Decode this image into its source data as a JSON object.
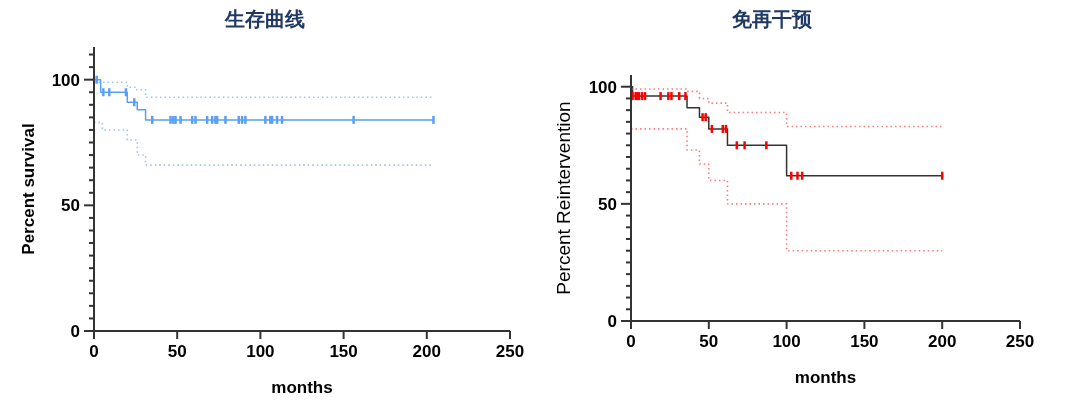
{
  "chart_data": [
    {
      "type": "step",
      "title": "生存曲线",
      "xlabel": "months",
      "ylabel": "Percent survival",
      "xlim": [
        0,
        250
      ],
      "ylim": [
        0,
        113
      ],
      "xticks": [
        0,
        50,
        100,
        150,
        200,
        250
      ],
      "yticks": [
        0,
        {
          "value": 5,
          "label": null
        },
        {
          "value": 10,
          "label": null
        },
        {
          "value": 15,
          "label": null
        },
        {
          "value": 20,
          "label": null
        },
        {
          "value": 25,
          "label": null
        },
        {
          "value": 30,
          "label": null
        },
        {
          "value": 35,
          "label": null
        },
        {
          "value": 40,
          "label": null
        },
        {
          "value": 45,
          "label": null
        },
        50,
        {
          "value": 55,
          "label": null
        },
        {
          "value": 60,
          "label": null
        },
        {
          "value": 65,
          "label": null
        },
        {
          "value": 70,
          "label": null
        },
        {
          "value": 75,
          "label": null
        },
        {
          "value": 80,
          "label": null
        },
        {
          "value": 85,
          "label": null
        },
        {
          "value": 90,
          "label": null
        },
        {
          "value": 95,
          "label": null
        },
        100,
        {
          "value": 105,
          "label": null
        },
        {
          "value": 110,
          "label": null
        }
      ],
      "grid": false,
      "series": [
        {
          "type": "step",
          "color": "#5aa0f5",
          "line_style": "solid",
          "x": [
            0,
            4,
            20,
            26,
            31,
            204
          ],
          "values": [
            100,
            95,
            91,
            88,
            84,
            84
          ]
        },
        {
          "type": "step",
          "color": "#9cc4f7",
          "line_style": "dotted",
          "x": [
            0,
            20,
            25,
            31,
            204
          ],
          "values": [
            99,
            97,
            96,
            93,
            93
          ]
        },
        {
          "type": "step",
          "color": "#9cc4f7",
          "line_style": "dotted",
          "x": [
            0,
            5,
            20,
            26,
            31,
            204
          ],
          "values": [
            83,
            80,
            76,
            70,
            66,
            66
          ]
        },
        {
          "type": "scatter",
          "color": "#5aa0f5",
          "x": [
            1.6,
            5.6,
            9.2,
            19.2,
            24.2,
            35,
            46,
            47.7,
            49,
            52,
            59,
            61,
            68,
            71,
            73,
            74,
            79,
            87,
            89,
            91,
            103,
            106,
            107,
            110,
            113,
            156,
            204
          ],
          "values": [
            100,
            95,
            95,
            95,
            91,
            84,
            84,
            84,
            84,
            84,
            84,
            84,
            84,
            84,
            84,
            84,
            84,
            84,
            84,
            84,
            84,
            84,
            84,
            84,
            84,
            84,
            84
          ]
        }
      ]
    },
    {
      "type": "step",
      "title": "免再干预",
      "xlabel": "months",
      "ylabel": "Percent Reintervention",
      "xlim": [
        0,
        250
      ],
      "ylim": [
        0,
        105
      ],
      "xticks": [
        0,
        50,
        100,
        150,
        200,
        250
      ],
      "yticks": [
        0,
        {
          "value": 5,
          "label": null
        },
        {
          "value": 10,
          "label": null
        },
        {
          "value": 15,
          "label": null
        },
        {
          "value": 20,
          "label": null
        },
        {
          "value": 25,
          "label": null
        },
        {
          "value": 30,
          "label": null
        },
        {
          "value": 35,
          "label": null
        },
        {
          "value": 40,
          "label": null
        },
        {
          "value": 45,
          "label": null
        },
        50,
        {
          "value": 55,
          "label": null
        },
        {
          "value": 60,
          "label": null
        },
        {
          "value": 65,
          "label": null
        },
        {
          "value": 70,
          "label": null
        },
        {
          "value": 75,
          "label": null
        },
        {
          "value": 80,
          "label": null
        },
        {
          "value": 85,
          "label": null
        },
        {
          "value": 90,
          "label": null
        },
        {
          "value": 95,
          "label": null
        },
        100
      ],
      "grid": false,
      "series": [
        {
          "type": "step",
          "color": "#333333",
          "line_style": "solid",
          "x": [
            0,
            1,
            36,
            44,
            50,
            62,
            100,
            200
          ],
          "values": [
            100,
            96,
            91,
            87,
            82,
            75,
            62,
            62
          ]
        },
        {
          "type": "step",
          "color": "#ff7b7b",
          "line_style": "dotted",
          "x": [
            0,
            36,
            44,
            50,
            62,
            100,
            200
          ],
          "values": [
            99,
            98,
            95,
            93,
            89,
            83,
            83
          ]
        },
        {
          "type": "step",
          "color": "#ff7b7b",
          "line_style": "dotted",
          "x": [
            0,
            36,
            44,
            50,
            62,
            100,
            200
          ],
          "values": [
            82,
            73,
            67,
            60,
            50,
            30,
            30
          ]
        },
        {
          "type": "scatter",
          "color": "#ff0000",
          "x": [
            1,
            3,
            4,
            5,
            7,
            9,
            19,
            24,
            26,
            31,
            35,
            46,
            48,
            52,
            59,
            61,
            68,
            73,
            87,
            103,
            107,
            110,
            200
          ],
          "values": [
            96,
            96,
            96,
            96,
            96,
            96,
            96,
            96,
            96,
            96,
            96,
            87,
            87,
            82,
            82,
            82,
            75,
            75,
            75,
            62,
            62,
            62,
            62
          ]
        }
      ]
    }
  ]
}
